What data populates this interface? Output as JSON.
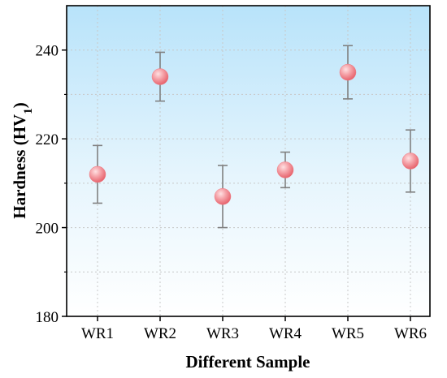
{
  "chart_data": {
    "type": "scatter",
    "title": "",
    "xlabel": "Different Sample",
    "ylabel": "Hardness (HV",
    "ylabel_sub": "1",
    "ylabel_close": ")",
    "ylim": [
      180,
      250
    ],
    "yticks": [
      180,
      200,
      220,
      240
    ],
    "grid": true,
    "categories": [
      "WR1",
      "WR2",
      "WR3",
      "WR4",
      "WR5",
      "WR6"
    ],
    "series": [
      {
        "values": [
          212,
          234,
          207,
          213,
          235,
          215
        ],
        "error_low": [
          205.5,
          228.5,
          200,
          209,
          229,
          208
        ],
        "error_high": [
          218.5,
          239.5,
          214,
          217,
          241,
          222
        ]
      }
    ],
    "colors": {
      "marker": "#f07c84",
      "marker_highlight": "#ffe0e2",
      "errorbar": "#808080",
      "bg_top": "#b8e3fa",
      "bg_bottom": "#ffffff",
      "grid": "#c8c8c8"
    }
  }
}
